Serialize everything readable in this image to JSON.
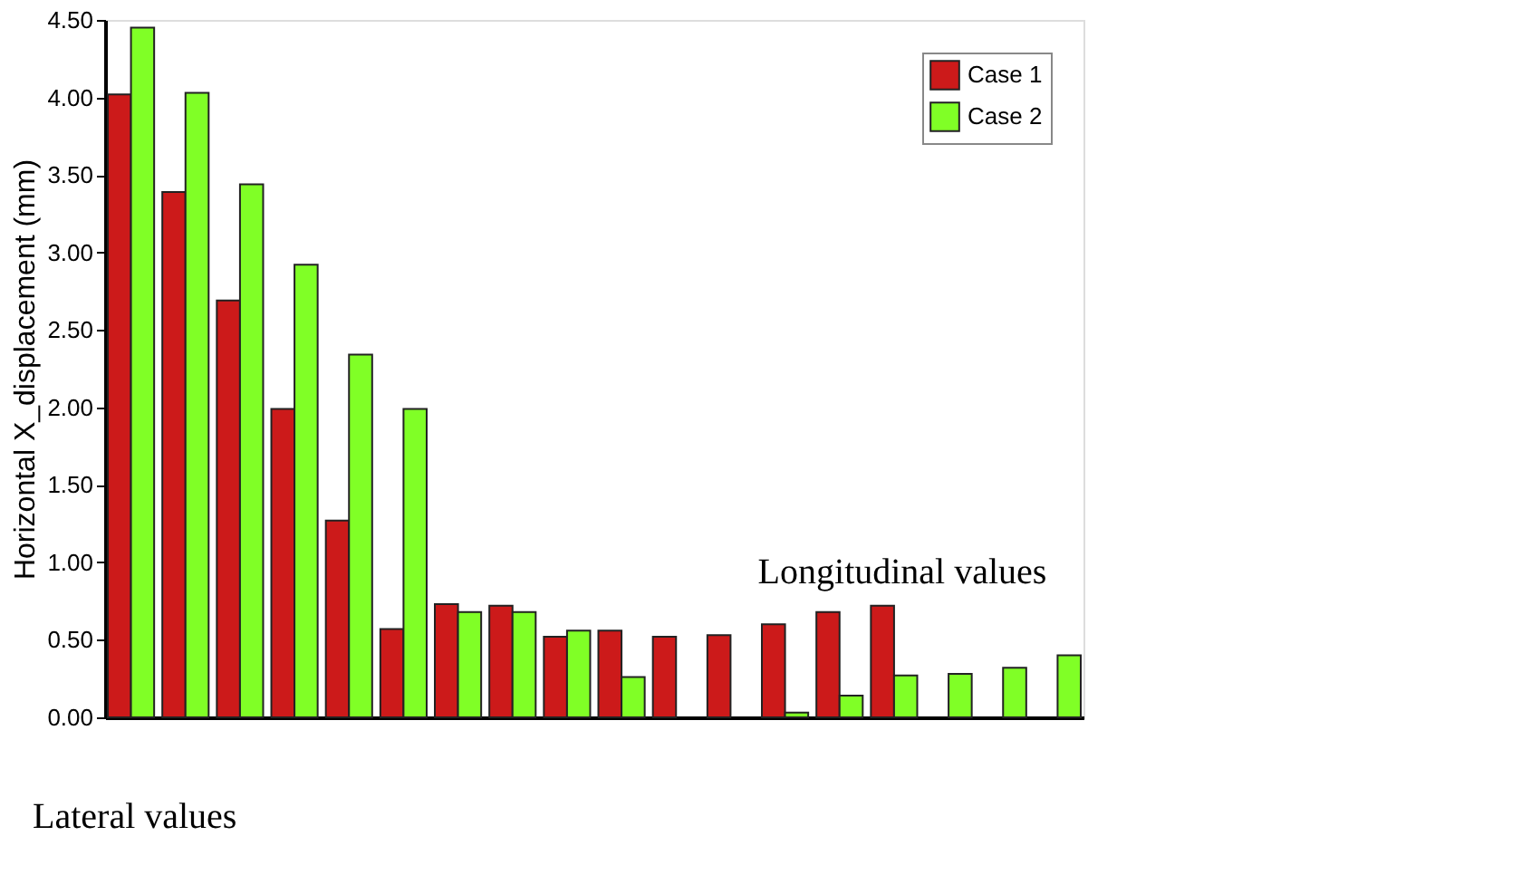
{
  "chart_data": {
    "type": "bar",
    "ylabel": "Horizontal X_displacement (mm)",
    "categories": [
      null,
      null,
      null,
      null,
      null,
      null,
      null,
      null,
      null,
      null,
      null,
      null,
      null,
      null,
      null,
      null,
      null,
      null
    ],
    "series": [
      {
        "name": "Case 1",
        "color": "#cc1a1a",
        "values": [
          4.02,
          3.39,
          2.69,
          1.99,
          1.27,
          0.57,
          0.73,
          0.72,
          0.52,
          0.56,
          0.52,
          0.53,
          0.6,
          0.68,
          0.72,
          null,
          null,
          null
        ]
      },
      {
        "name": "Case 2",
        "color": "#80ff26",
        "values": [
          4.45,
          4.03,
          3.44,
          2.92,
          2.34,
          1.99,
          0.68,
          0.68,
          0.56,
          0.26,
          null,
          null,
          0.03,
          0.14,
          0.27,
          0.28,
          0.32,
          0.4
        ]
      }
    ],
    "ylim": [
      0,
      4.5
    ],
    "yticks": [
      {
        "value": 0,
        "label": "0.00"
      },
      {
        "value": 0.5,
        "label": "0.50"
      },
      {
        "value": 1,
        "label": "1.00"
      },
      {
        "value": 1.5,
        "label": "1.50"
      },
      {
        "value": 2,
        "label": "2.00"
      },
      {
        "value": 2.5,
        "label": "2.50"
      },
      {
        "value": 3,
        "label": "3.00"
      },
      {
        "value": 3.5,
        "label": "3.50"
      },
      {
        "value": 4,
        "label": "4.00"
      },
      {
        "value": 4.5,
        "label": "4.50"
      }
    ],
    "tick_labels": "y",
    "grid": false,
    "legend": "top right",
    "annotations": [
      "Lateral values",
      "Longitudinal values"
    ]
  }
}
